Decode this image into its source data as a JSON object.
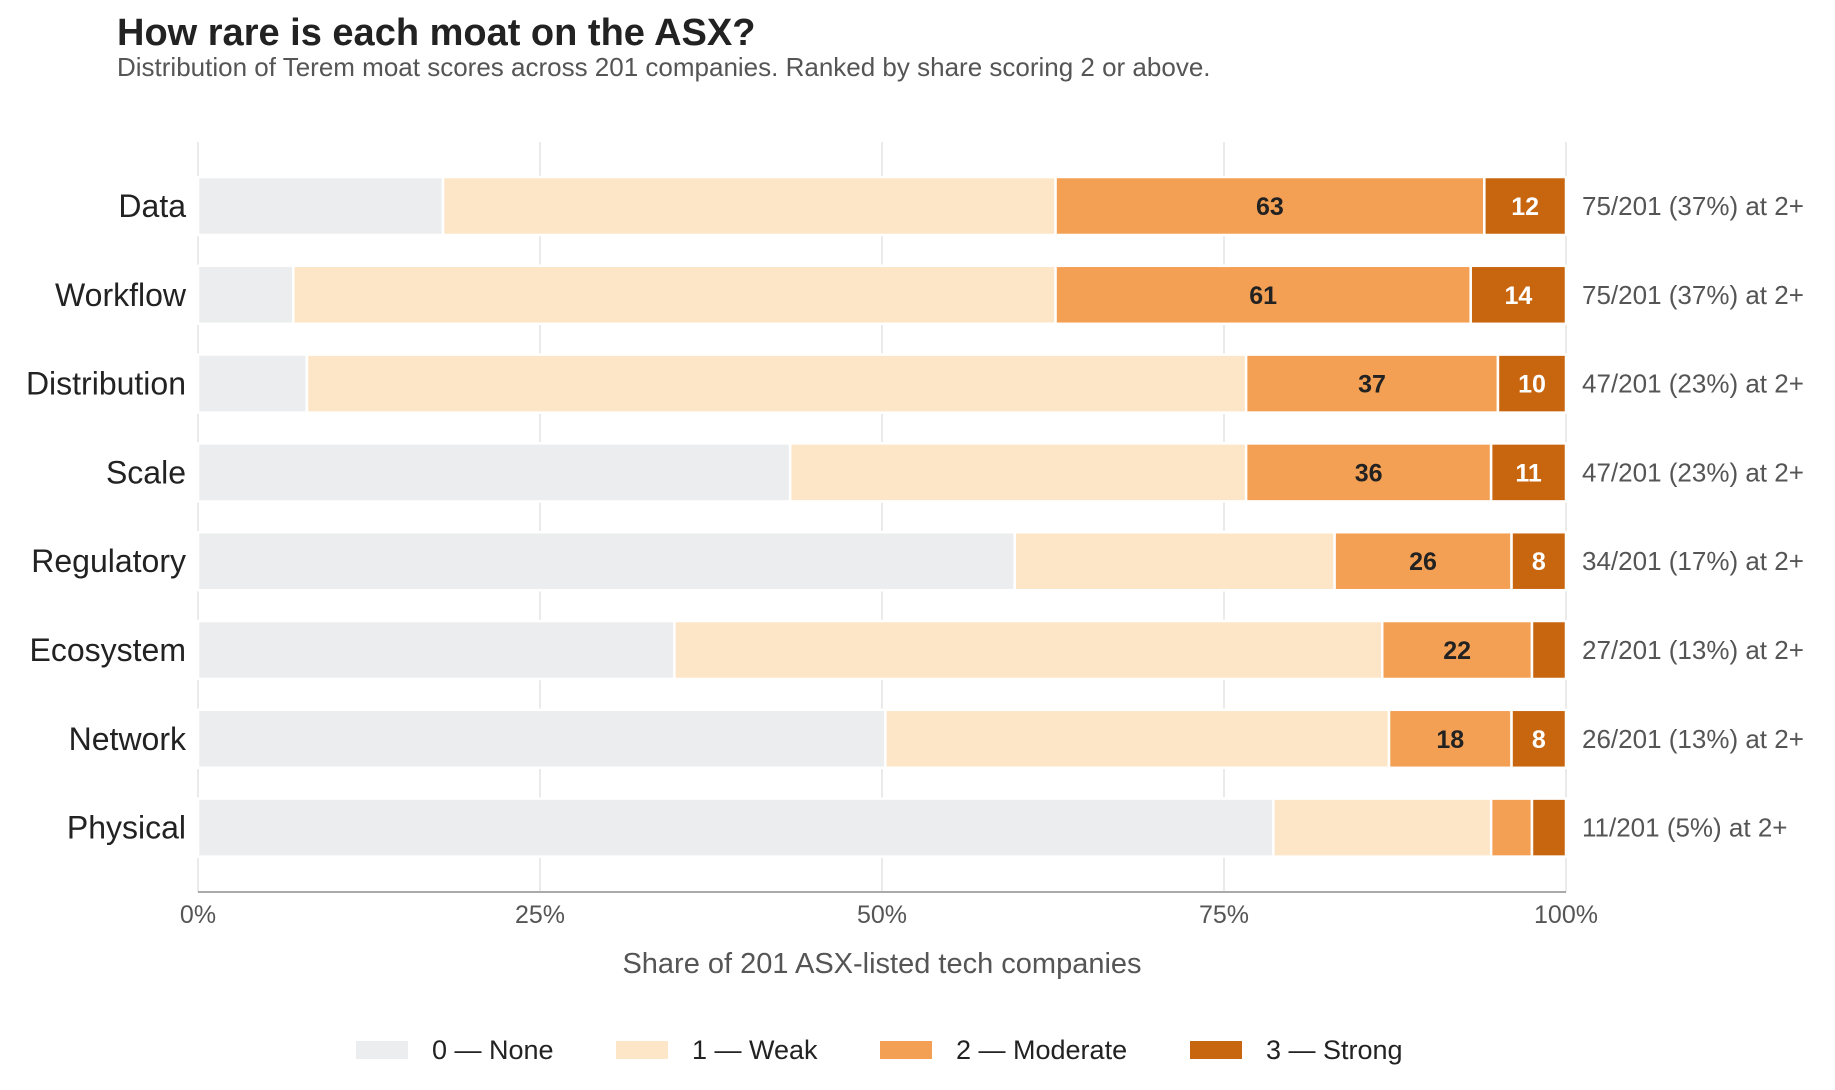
{
  "colors": {
    "none": "#ECEDEF",
    "weak": "#FDE6C8",
    "moderate": "#F3A054",
    "strong": "#C8650F",
    "grid": "#E3E3E3",
    "axis": "#AAAAAA",
    "text_dark": "#222222",
    "text_muted": "#555555"
  },
  "chart_data": {
    "type": "bar",
    "orientation": "horizontal",
    "stacked": true,
    "normalized": true,
    "title": "How rare is each moat on the ASX?",
    "subtitle": "Distribution of Terem moat scores across 201 companies.  Ranked by share scoring 2 or above.",
    "xlabel": "Share of 201 ASX-listed tech companies",
    "ylabel": "",
    "xlim": [
      0,
      100
    ],
    "x_ticks": [
      0,
      25,
      50,
      75,
      100
    ],
    "x_tick_labels": [
      "0%",
      "25%",
      "50%",
      "75%",
      "100%"
    ],
    "grid": "vertical",
    "legend_position": "bottom",
    "total": 201,
    "categories": [
      "Data",
      "Workflow",
      "Distribution",
      "Scale",
      "Regulatory",
      "Ecosystem",
      "Network",
      "Physical"
    ],
    "series": [
      {
        "key": "none",
        "name": "0 — None",
        "values": [
          36,
          14,
          16,
          87,
          120,
          70,
          101,
          158
        ]
      },
      {
        "key": "weak",
        "name": "1 — Weak",
        "values": [
          90,
          112,
          138,
          67,
          47,
          104,
          74,
          32
        ]
      },
      {
        "key": "moderate",
        "name": "2 — Moderate",
        "values": [
          63,
          61,
          37,
          36,
          26,
          22,
          18,
          6
        ]
      },
      {
        "key": "strong",
        "name": "3 — Strong",
        "values": [
          12,
          14,
          10,
          11,
          8,
          5,
          8,
          5
        ]
      }
    ],
    "labeled_series": [
      "moderate",
      "strong"
    ],
    "label_min_value": 8,
    "right_annotations": [
      "75/201  (37%) at 2+",
      "75/201  (37%) at 2+",
      "47/201  (23%) at 2+",
      "47/201  (23%) at 2+",
      "34/201  (17%) at 2+",
      "27/201  (13%) at 2+",
      "26/201  (13%) at 2+",
      "11/201  (5%) at 2+"
    ]
  }
}
